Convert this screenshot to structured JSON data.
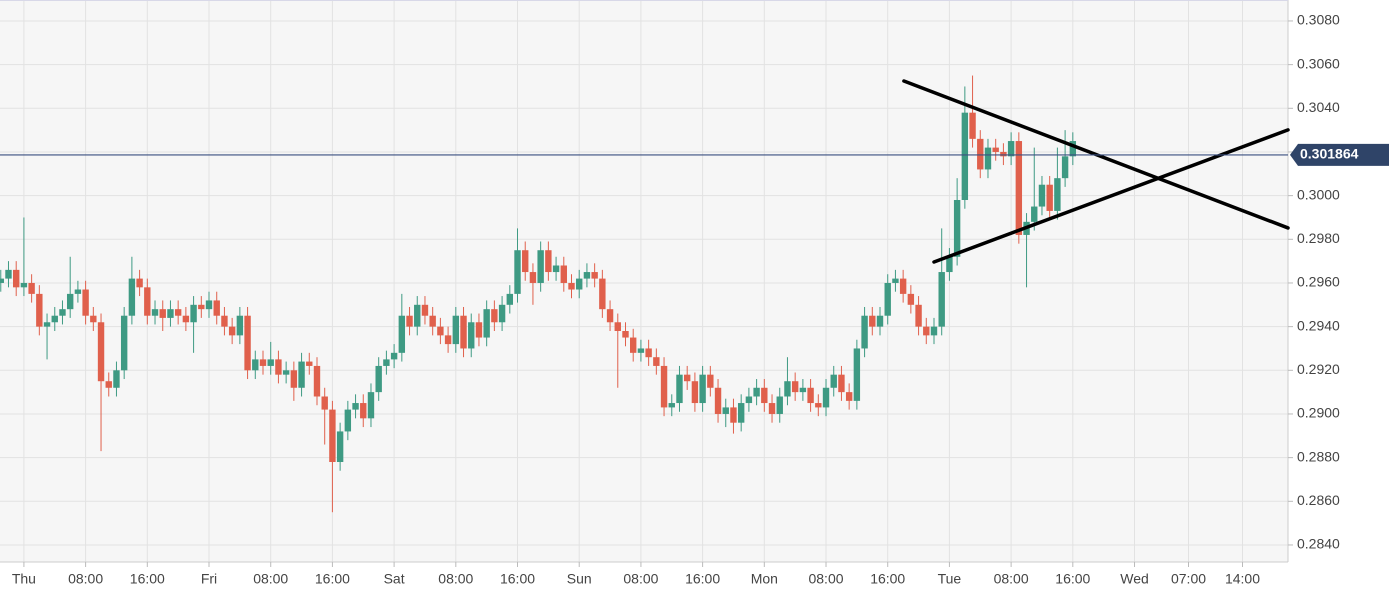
{
  "chart_data": {
    "type": "candlestick",
    "x": [
      -3,
      -2,
      -1,
      0,
      1,
      2,
      3,
      4,
      5,
      6,
      7,
      8,
      9,
      10,
      11,
      12,
      13,
      14,
      15,
      16,
      17,
      18,
      19,
      20,
      21,
      22,
      23,
      24,
      25,
      26,
      27,
      28,
      29,
      30,
      31,
      32,
      33,
      34,
      35,
      36,
      37,
      38,
      39,
      40,
      41,
      42,
      43,
      44,
      45,
      46,
      47,
      48,
      49,
      50,
      51,
      52,
      53,
      54,
      55,
      56,
      57,
      58,
      59,
      60,
      61,
      62,
      63,
      64,
      65,
      66,
      67,
      68,
      69,
      70,
      71,
      72,
      73,
      74,
      75,
      76,
      77,
      78,
      79,
      80,
      81,
      82,
      83,
      84,
      85,
      86,
      87,
      88,
      89,
      90,
      91,
      92,
      93,
      94,
      95,
      96,
      97,
      98,
      99,
      100,
      101,
      102,
      103,
      104,
      105,
      106,
      107,
      108,
      109,
      110,
      111,
      112,
      113,
      114,
      115,
      116,
      117,
      118,
      119,
      120,
      121,
      122,
      123,
      124,
      125,
      126,
      127,
      128,
      129,
      130,
      131,
      132,
      133,
      134,
      135,
      136
    ],
    "open": [
      0.296,
      0.2962,
      0.2966,
      0.2958,
      0.296,
      0.2955,
      0.294,
      0.2942,
      0.2945,
      0.2948,
      0.2955,
      0.2957,
      0.2945,
      0.2942,
      0.2915,
      0.2912,
      0.292,
      0.2945,
      0.2962,
      0.2958,
      0.2945,
      0.2948,
      0.2944,
      0.2948,
      0.2945,
      0.2942,
      0.295,
      0.2948,
      0.2952,
      0.2945,
      0.294,
      0.2936,
      0.2945,
      0.292,
      0.2925,
      0.2922,
      0.2925,
      0.2918,
      0.292,
      0.2912,
      0.2924,
      0.2922,
      0.2908,
      0.2902,
      0.2878,
      0.2892,
      0.2902,
      0.2905,
      0.2898,
      0.291,
      0.2922,
      0.2925,
      0.2928,
      0.2945,
      0.294,
      0.295,
      0.2945,
      0.294,
      0.2936,
      0.2932,
      0.2945,
      0.293,
      0.2942,
      0.2935,
      0.2948,
      0.2942,
      0.295,
      0.2955,
      0.2975,
      0.2965,
      0.296,
      0.2975,
      0.2965,
      0.2968,
      0.296,
      0.2957,
      0.2962,
      0.2965,
      0.2962,
      0.2948,
      0.2942,
      0.2938,
      0.2935,
      0.2928,
      0.293,
      0.2926,
      0.2922,
      0.2903,
      0.2905,
      0.2918,
      0.2915,
      0.2905,
      0.2918,
      0.2912,
      0.29,
      0.2903,
      0.2896,
      0.2905,
      0.2908,
      0.2912,
      0.2905,
      0.29,
      0.2908,
      0.2915,
      0.291,
      0.2912,
      0.2905,
      0.2903,
      0.2912,
      0.2918,
      0.291,
      0.2906,
      0.293,
      0.2945,
      0.294,
      0.2945,
      0.296,
      0.2962,
      0.2955,
      0.295,
      0.294,
      0.2936,
      0.294,
      0.2965,
      0.2972,
      0.2998,
      0.3038,
      0.3026,
      0.3012,
      0.3022,
      0.302,
      0.3018,
      0.3025,
      0.2982,
      0.2988,
      0.2995,
      0.3005,
      0.2993,
      0.3008,
      0.3018
    ],
    "high": [
      0.2966,
      0.297,
      0.297,
      0.299,
      0.2964,
      0.2959,
      0.2946,
      0.2949,
      0.2952,
      0.2972,
      0.2961,
      0.2961,
      0.2949,
      0.2946,
      0.2919,
      0.2924,
      0.2949,
      0.2972,
      0.2966,
      0.2962,
      0.2952,
      0.2952,
      0.2952,
      0.2952,
      0.2949,
      0.2954,
      0.2954,
      0.2956,
      0.2956,
      0.2949,
      0.2944,
      0.2949,
      0.2949,
      0.2929,
      0.2929,
      0.2933,
      0.2929,
      0.2924,
      0.2924,
      0.2928,
      0.2928,
      0.2926,
      0.2912,
      0.2906,
      0.2896,
      0.2906,
      0.2909,
      0.2909,
      0.2914,
      0.2926,
      0.2929,
      0.2932,
      0.2955,
      0.2949,
      0.2954,
      0.2954,
      0.2949,
      0.2944,
      0.294,
      0.2949,
      0.2949,
      0.2946,
      0.2946,
      0.2952,
      0.2952,
      0.2954,
      0.2959,
      0.2985,
      0.2979,
      0.2969,
      0.2979,
      0.2979,
      0.2972,
      0.2972,
      0.2964,
      0.2966,
      0.2969,
      0.2969,
      0.2966,
      0.2952,
      0.2946,
      0.2942,
      0.2939,
      0.2934,
      0.2934,
      0.293,
      0.2926,
      0.2909,
      0.2922,
      0.2922,
      0.2919,
      0.2922,
      0.2922,
      0.2916,
      0.2907,
      0.2907,
      0.2909,
      0.2912,
      0.2916,
      0.2916,
      0.2909,
      0.2912,
      0.2926,
      0.2919,
      0.2916,
      0.2916,
      0.2909,
      0.2916,
      0.2922,
      0.2922,
      0.2914,
      0.2934,
      0.2949,
      0.2949,
      0.2949,
      0.2964,
      0.2966,
      0.2966,
      0.2959,
      0.2954,
      0.2944,
      0.2944,
      0.2985,
      0.2976,
      0.3008,
      0.305,
      0.3055,
      0.303,
      0.3026,
      0.3026,
      0.3024,
      0.3029,
      0.3029,
      0.2992,
      0.3022,
      0.3009,
      0.3009,
      0.3022,
      0.303,
      0.3029
    ],
    "low": [
      0.2956,
      0.2958,
      0.2954,
      0.2954,
      0.2951,
      0.2936,
      0.2925,
      0.2938,
      0.2941,
      0.2944,
      0.2951,
      0.2941,
      0.2938,
      0.2883,
      0.2908,
      0.2908,
      0.2916,
      0.2941,
      0.2954,
      0.2941,
      0.2941,
      0.2938,
      0.294,
      0.2941,
      0.2938,
      0.2928,
      0.2944,
      0.2944,
      0.2941,
      0.2936,
      0.2932,
      0.2932,
      0.2916,
      0.2916,
      0.2918,
      0.2918,
      0.2914,
      0.2914,
      0.2906,
      0.2908,
      0.2918,
      0.2904,
      0.2886,
      0.2855,
      0.2874,
      0.2888,
      0.2898,
      0.2894,
      0.2894,
      0.2906,
      0.2918,
      0.2921,
      0.2924,
      0.2936,
      0.2936,
      0.2941,
      0.2936,
      0.2932,
      0.2928,
      0.2928,
      0.2926,
      0.2926,
      0.2931,
      0.2931,
      0.2938,
      0.2938,
      0.2946,
      0.2951,
      0.2961,
      0.295,
      0.2956,
      0.2961,
      0.2961,
      0.2956,
      0.2953,
      0.2953,
      0.2958,
      0.2958,
      0.2944,
      0.2938,
      0.2912,
      0.2931,
      0.2924,
      0.2924,
      0.2922,
      0.2918,
      0.2899,
      0.2899,
      0.2901,
      0.2911,
      0.2901,
      0.2901,
      0.2908,
      0.2896,
      0.2894,
      0.2891,
      0.2892,
      0.2901,
      0.2904,
      0.2901,
      0.2896,
      0.2896,
      0.2904,
      0.2906,
      0.2906,
      0.2901,
      0.2899,
      0.2899,
      0.2908,
      0.2906,
      0.2902,
      0.2902,
      0.2926,
      0.2936,
      0.2936,
      0.2941,
      0.2956,
      0.2951,
      0.2946,
      0.2936,
      0.2932,
      0.2932,
      0.2936,
      0.2961,
      0.2968,
      0.2994,
      0.3022,
      0.3008,
      0.3008,
      0.3016,
      0.3014,
      0.3014,
      0.2978,
      0.2958,
      0.2984,
      0.2991,
      0.2989,
      0.2989,
      0.3004,
      0.3014
    ],
    "close": [
      0.2962,
      0.2966,
      0.2958,
      0.296,
      0.2955,
      0.294,
      0.2942,
      0.2945,
      0.2948,
      0.2955,
      0.2957,
      0.2945,
      0.2942,
      0.2915,
      0.2912,
      0.292,
      0.2945,
      0.2962,
      0.2958,
      0.2945,
      0.2948,
      0.2944,
      0.2948,
      0.2945,
      0.2942,
      0.295,
      0.2948,
      0.2952,
      0.2945,
      0.294,
      0.2936,
      0.2945,
      0.292,
      0.2925,
      0.2922,
      0.2925,
      0.2918,
      0.292,
      0.2912,
      0.2924,
      0.2922,
      0.2908,
      0.2902,
      0.2878,
      0.2892,
      0.2902,
      0.2905,
      0.2898,
      0.291,
      0.2922,
      0.2925,
      0.2928,
      0.2945,
      0.294,
      0.295,
      0.2945,
      0.294,
      0.2936,
      0.2932,
      0.2945,
      0.293,
      0.2942,
      0.2935,
      0.2948,
      0.2942,
      0.295,
      0.2955,
      0.2975,
      0.2965,
      0.296,
      0.2975,
      0.2965,
      0.2968,
      0.296,
      0.2957,
      0.2962,
      0.2965,
      0.2962,
      0.2948,
      0.2942,
      0.2938,
      0.2935,
      0.2928,
      0.293,
      0.2926,
      0.2922,
      0.2903,
      0.2905,
      0.2918,
      0.2915,
      0.2905,
      0.2918,
      0.2912,
      0.29,
      0.2903,
      0.2896,
      0.2905,
      0.2908,
      0.2912,
      0.2905,
      0.29,
      0.2908,
      0.2915,
      0.291,
      0.2912,
      0.2905,
      0.2903,
      0.2912,
      0.2918,
      0.291,
      0.2906,
      0.293,
      0.2945,
      0.294,
      0.2945,
      0.296,
      0.2962,
      0.2955,
      0.295,
      0.294,
      0.2936,
      0.294,
      0.2965,
      0.2972,
      0.2998,
      0.3038,
      0.3026,
      0.3012,
      0.3022,
      0.302,
      0.3018,
      0.3025,
      0.2982,
      0.2988,
      0.2995,
      0.3005,
      0.2993,
      0.3008,
      0.3018,
      0.3025
    ],
    "up_color": "#3e9a83",
    "down_color": "#e0604c",
    "last_price": {
      "value": 0.301864,
      "label": "0.301864"
    },
    "trendlines": [
      {
        "x": [
          114.1,
          163.9
        ],
        "y": [
          0.30525,
          0.29852
        ]
      },
      {
        "x": [
          118.0,
          163.9
        ],
        "y": [
          0.29696,
          0.30301
        ]
      }
    ],
    "xlim": [
      -3.1,
      163.9
    ],
    "ylim": [
      0.28322,
      0.30896
    ],
    "xticks": [
      {
        "value": 0,
        "label": "Thu"
      },
      {
        "value": 8,
        "label": "08:00"
      },
      {
        "value": 16,
        "label": "16:00"
      },
      {
        "value": 24,
        "label": "Fri"
      },
      {
        "value": 32,
        "label": "08:00"
      },
      {
        "value": 40,
        "label": "16:00"
      },
      {
        "value": 48,
        "label": "Sat"
      },
      {
        "value": 56,
        "label": "08:00"
      },
      {
        "value": 64,
        "label": "16:00"
      },
      {
        "value": 72,
        "label": "Sun"
      },
      {
        "value": 80,
        "label": "08:00"
      },
      {
        "value": 88,
        "label": "16:00"
      },
      {
        "value": 96,
        "label": "Mon"
      },
      {
        "value": 104,
        "label": "08:00"
      },
      {
        "value": 112,
        "label": "16:00"
      },
      {
        "value": 120,
        "label": "Tue"
      },
      {
        "value": 128,
        "label": "08:00"
      },
      {
        "value": 136,
        "label": "16:00"
      },
      {
        "value": 144,
        "label": "Wed"
      },
      {
        "value": 151,
        "label": "07:00"
      },
      {
        "value": 158,
        "label": "14:00"
      }
    ],
    "yticks": [
      {
        "value": 0.284,
        "label": "0.2840"
      },
      {
        "value": 0.286,
        "label": "0.2860"
      },
      {
        "value": 0.288,
        "label": "0.2880"
      },
      {
        "value": 0.29,
        "label": "0.2900"
      },
      {
        "value": 0.292,
        "label": "0.2920"
      },
      {
        "value": 0.294,
        "label": "0.2940"
      },
      {
        "value": 0.296,
        "label": "0.2960"
      },
      {
        "value": 0.298,
        "label": "0.2980"
      },
      {
        "value": 0.3,
        "label": "0.3000"
      },
      {
        "value": 0.302,
        "label": "0.3020"
      },
      {
        "value": 0.304,
        "label": "0.3040"
      },
      {
        "value": 0.306,
        "label": "0.3060"
      },
      {
        "value": 0.308,
        "label": "0.3080"
      }
    ],
    "grid": true
  }
}
